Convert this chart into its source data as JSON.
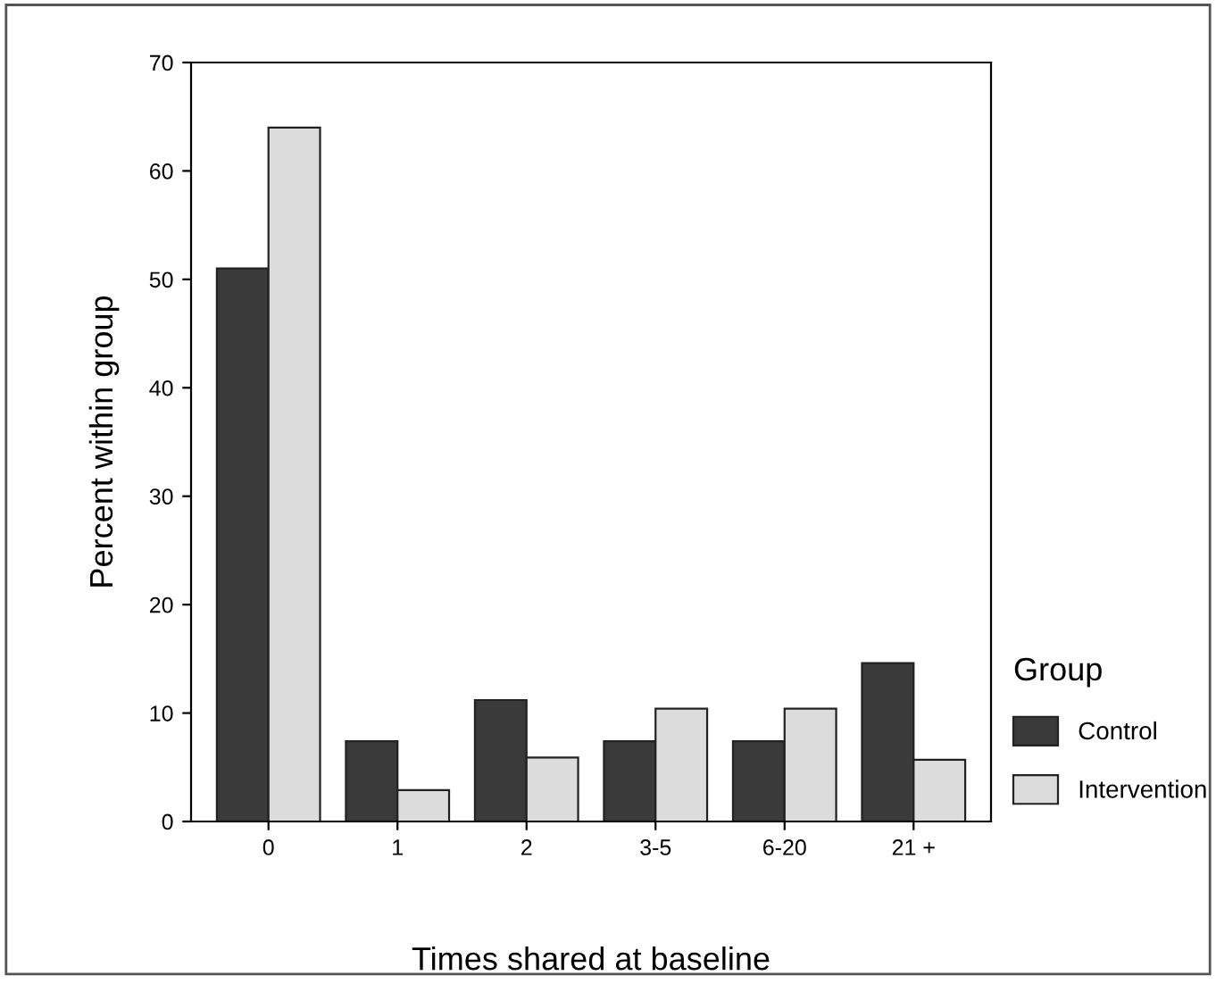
{
  "chart_data": {
    "type": "bar",
    "xlabel": "Times shared at baseline",
    "ylabel": "Percent within group",
    "legend_title": "Group",
    "categories": [
      "0",
      "1",
      "2",
      "3-5",
      "6-20",
      "21 +"
    ],
    "series": [
      {
        "name": "Control",
        "color": "#3a3a3a",
        "values": [
          51,
          7.4,
          11.2,
          7.4,
          7.4,
          14.6
        ]
      },
      {
        "name": "Intervention",
        "color": "#dcdcdc",
        "values": [
          64,
          2.9,
          5.9,
          10.4,
          10.4,
          5.7
        ]
      }
    ],
    "ylim": [
      0,
      70
    ],
    "yticks": [
      0,
      10,
      20,
      30,
      40,
      50,
      60,
      70
    ],
    "grid": false,
    "legend": "right"
  }
}
